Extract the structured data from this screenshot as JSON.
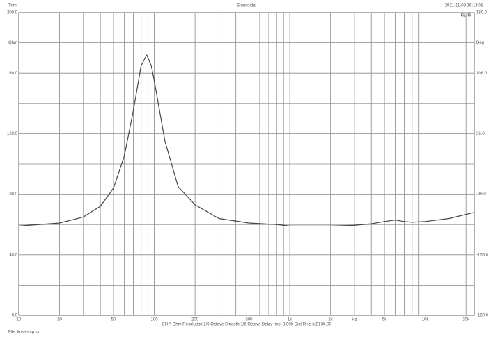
{
  "chart_data": {
    "type": "line",
    "title": "Sinusoidal",
    "top_left": "Trim",
    "timestamp": "2021-11-09 16:13:08",
    "brand": "CLIO",
    "footer": "CH A  Ohm  Resolution 1/6 Octave  Smooth 1/6 Octave  Delay [ms] 0.000  Dist Rise [dB] 30.00",
    "file": "File: koss-imp.sin",
    "xscale": "log",
    "xlim": [
      10,
      23000
    ],
    "xticks": [
      10,
      20,
      50,
      100,
      200,
      500,
      {
        "value": 1000,
        "label": "1k"
      },
      {
        "value": 2000,
        "label": "2k"
      },
      {
        "value": 3000,
        "label": "Hz"
      },
      {
        "value": 5000,
        "label": "5k"
      },
      {
        "value": 10000,
        "label": "10k"
      },
      {
        "value": 20000,
        "label": "20k"
      }
    ],
    "xgrid": [
      20,
      30,
      40,
      50,
      60,
      70,
      80,
      90,
      100,
      200,
      300,
      400,
      500,
      600,
      700,
      800,
      900,
      1000,
      2000,
      3000,
      4000,
      5000,
      6000,
      7000,
      8000,
      9000,
      10000,
      20000
    ],
    "ylim": [
      0,
      200
    ],
    "yticks": [
      {
        "value": 0,
        "label": "0.0"
      },
      {
        "value": 40,
        "label": "40.0"
      },
      {
        "value": 80,
        "label": "80.0"
      },
      {
        "value": 120,
        "label": "120.0"
      },
      {
        "value": 160,
        "label": "160.0"
      },
      {
        "value": 180,
        "label": "Ohm"
      },
      {
        "value": 200,
        "label": "200.0"
      }
    ],
    "ygrid": [
      20,
      40,
      60,
      80,
      100,
      120,
      140,
      160,
      180
    ],
    "y2lim": [
      -180,
      180
    ],
    "y2ticks": [
      {
        "value": -180,
        "label": "-180.0"
      },
      {
        "value": -108,
        "label": "-108.0"
      },
      {
        "value": -36,
        "label": "-36.0"
      },
      {
        "value": 36,
        "label": "36.0"
      },
      {
        "value": 108,
        "label": "108.0"
      },
      {
        "value": 144,
        "label": "Deg"
      },
      {
        "value": 180,
        "label": "180.0"
      }
    ],
    "color": "#444444",
    "x": [
      10,
      20,
      30,
      40,
      50,
      60,
      70,
      80,
      88,
      95,
      100,
      120,
      150,
      200,
      300,
      500,
      800,
      1000,
      2000,
      3000,
      4000,
      5000,
      6000,
      7000,
      8000,
      10000,
      15000,
      23000
    ],
    "values": [
      59,
      61,
      65,
      72,
      84,
      105,
      135,
      165,
      172,
      165,
      155,
      115,
      85,
      73,
      64,
      61,
      60,
      59,
      59,
      59.5,
      60.5,
      62,
      63,
      62,
      61.5,
      62,
      64,
      68
    ]
  }
}
